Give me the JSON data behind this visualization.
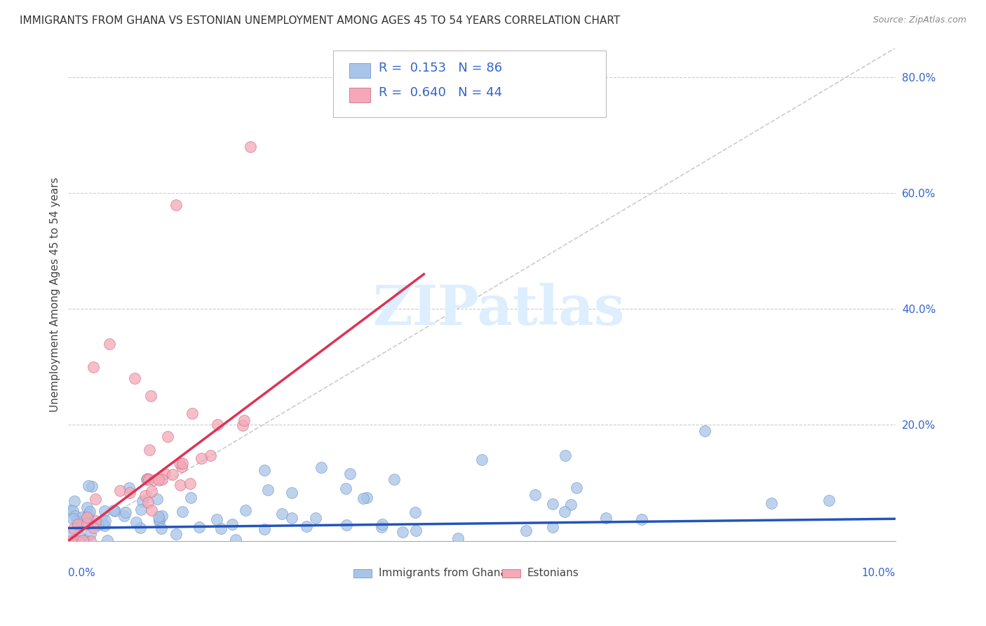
{
  "title": "IMMIGRANTS FROM GHANA VS ESTONIAN UNEMPLOYMENT AMONG AGES 45 TO 54 YEARS CORRELATION CHART",
  "source": "Source: ZipAtlas.com",
  "ylabel": "Unemployment Among Ages 45 to 54 years",
  "R1": 0.153,
  "N1": 86,
  "R2": 0.64,
  "N2": 44,
  "color_blue": "#a8c4e8",
  "color_pink": "#f4a8b8",
  "color_line_blue": "#2255bb",
  "color_line_pink": "#dd3355",
  "color_ref_line": "#cccccc",
  "color_grid": "#cccccc",
  "color_right_tick": "#3366cc",
  "watermark_color": "#ddeeff",
  "title_fontsize": 11,
  "source_fontsize": 9,
  "legend_fontsize": 13,
  "axis_label_fontsize": 11,
  "seed": 42,
  "xlim": [
    0.0,
    0.1
  ],
  "ylim": [
    0.0,
    0.85
  ],
  "right_ytick_vals": [
    0.2,
    0.4,
    0.6,
    0.8
  ],
  "right_ytick_labels": [
    "20.0%",
    "40.0%",
    "60.0%",
    "80.0%"
  ],
  "grid_yvals": [
    0.2,
    0.4,
    0.6,
    0.8
  ],
  "legend1_label": "Immigrants from Ghana",
  "legend2_label": "Estonians",
  "blue_trend": [
    0.0,
    0.1,
    0.022,
    0.038
  ],
  "pink_trend_x": [
    0.0,
    0.043
  ],
  "pink_trend_y": [
    0.0,
    0.46
  ]
}
